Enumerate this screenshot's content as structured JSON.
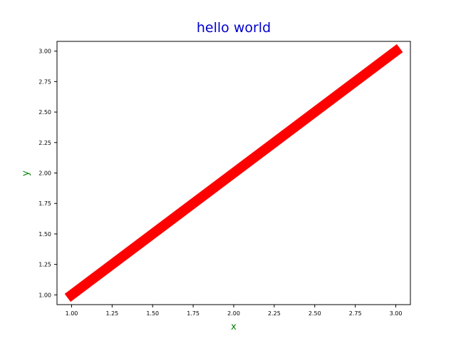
{
  "chart_data": {
    "type": "line",
    "title": "hello world",
    "xlabel": "x",
    "ylabel": "y",
    "xlim": [
      0.91,
      3.09
    ],
    "ylim": [
      0.92,
      3.08
    ],
    "x_ticks": [
      1.0,
      1.25,
      1.5,
      1.75,
      2.0,
      2.25,
      2.5,
      2.75,
      3.0
    ],
    "x_tick_labels": [
      "1.00",
      "1.25",
      "1.50",
      "1.75",
      "2.00",
      "2.25",
      "2.50",
      "2.75",
      "3.00"
    ],
    "y_ticks": [
      1.0,
      1.25,
      1.5,
      1.75,
      2.0,
      2.25,
      2.5,
      2.75,
      3.0
    ],
    "y_tick_labels": [
      "1.00",
      "1.25",
      "1.50",
      "1.75",
      "2.00",
      "2.25",
      "2.50",
      "2.75",
      "3.00"
    ],
    "grid": false,
    "legend": "none",
    "series": [
      {
        "x": [
          1,
          3
        ],
        "y": [
          1,
          3
        ],
        "color": "#ff0000"
      }
    ]
  }
}
